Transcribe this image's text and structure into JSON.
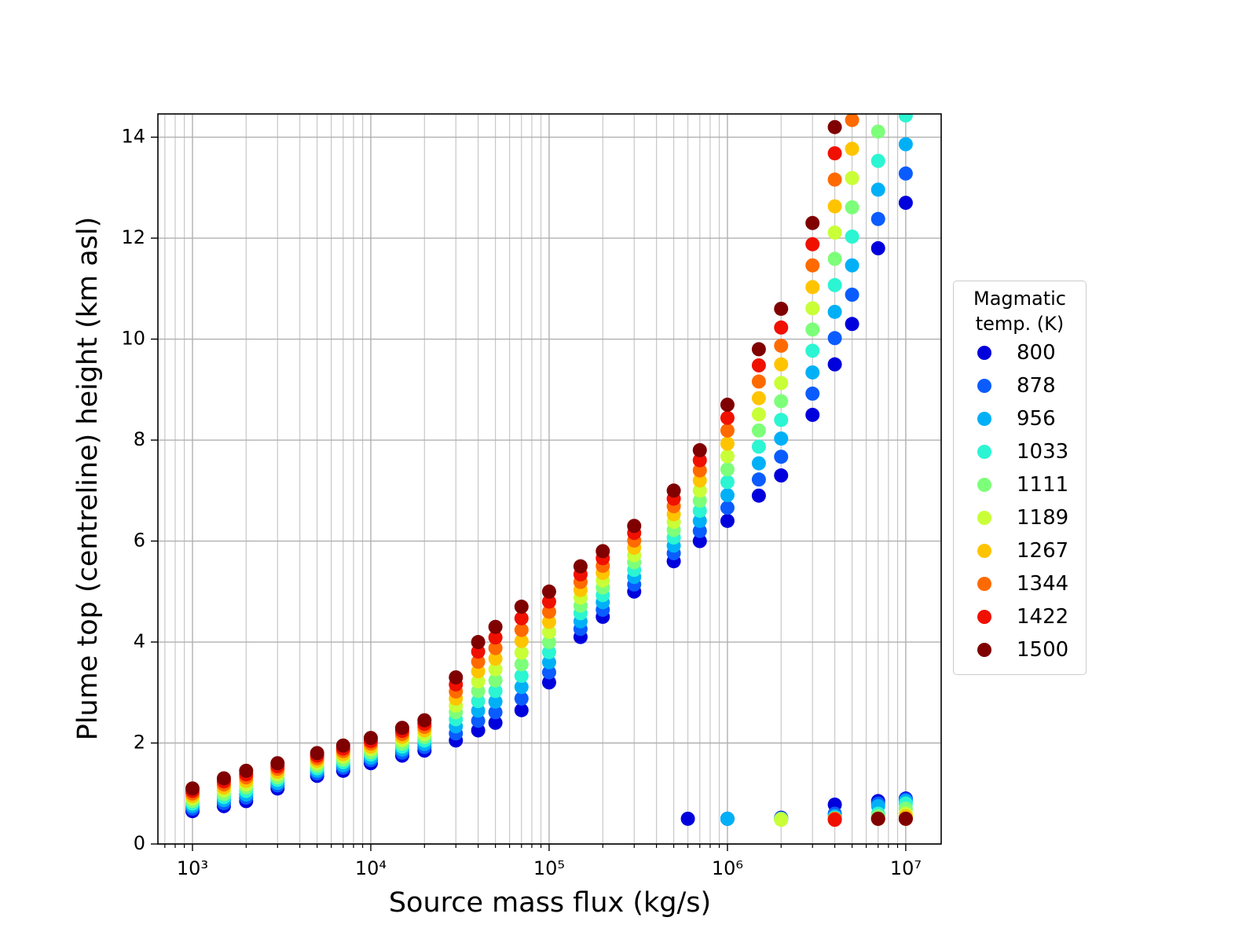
{
  "chart_data": {
    "type": "scatter",
    "xlabel": "Source mass flux (kg/s)",
    "ylabel": "Plume top (centreline) height (km asl)",
    "xscale": "log",
    "xlim": [
      640,
      15800000
    ],
    "ylim": [
      0,
      14.46
    ],
    "xticks": [
      {
        "value": 1000,
        "label": "10³"
      },
      {
        "value": 10000,
        "label": "10⁴"
      },
      {
        "value": 100000,
        "label": "10⁵"
      },
      {
        "value": 1000000,
        "label": "10⁶"
      },
      {
        "value": 10000000,
        "label": "10⁷"
      }
    ],
    "yticks": [
      0,
      2,
      4,
      6,
      8,
      10,
      12,
      14
    ],
    "grid": true,
    "legend_title": "Magmatic\ntemp. (K)",
    "legend_position": "right",
    "x": [
      1000,
      1500,
      2000,
      3000,
      5000,
      7000,
      10000,
      15000,
      20000,
      30000,
      40000,
      50000,
      70000,
      100000,
      150000,
      200000,
      300000,
      500000,
      700000,
      1000000,
      1500000,
      2000000,
      3000000,
      4000000,
      5000000,
      7000000,
      10000000,
      600000,
      1000000,
      2000000,
      4000000,
      7000000,
      10000000
    ],
    "series": [
      {
        "name": "800",
        "color": "#0000dd",
        "values": [
          0.65,
          0.75,
          0.85,
          1.1,
          1.35,
          1.45,
          1.6,
          1.75,
          1.85,
          2.05,
          2.25,
          2.4,
          2.65,
          3.2,
          4.1,
          4.5,
          5.0,
          5.6,
          6.0,
          6.4,
          6.9,
          7.3,
          8.5,
          9.5,
          10.3,
          11.8,
          12.7,
          0.5,
          0.5,
          0.52,
          0.78,
          0.85,
          0.9
        ]
      },
      {
        "name": "878",
        "color": "#0a5cff",
        "values": [
          0.7,
          0.81,
          0.92,
          1.16,
          1.4,
          1.51,
          1.66,
          1.81,
          1.92,
          2.19,
          2.44,
          2.61,
          2.88,
          3.4,
          4.26,
          4.64,
          5.14,
          5.76,
          6.2,
          6.66,
          7.22,
          7.67,
          8.92,
          10.02,
          10.88,
          12.38,
          13.28,
          null,
          0.5,
          0.5,
          0.6,
          0.8,
          0.88
        ]
      },
      {
        "name": "956",
        "color": "#00b0f7",
        "values": [
          0.75,
          0.87,
          0.98,
          1.21,
          1.45,
          1.56,
          1.71,
          1.87,
          1.98,
          2.33,
          2.64,
          2.82,
          3.11,
          3.6,
          4.41,
          4.79,
          5.29,
          5.91,
          6.4,
          6.91,
          7.54,
          8.03,
          9.34,
          10.54,
          11.46,
          12.96,
          13.86,
          null,
          0.5,
          0.5,
          0.55,
          0.75,
          0.85
        ]
      },
      {
        "name": "1033",
        "color": "#2bf5d2",
        "values": [
          0.8,
          0.93,
          1.05,
          1.27,
          1.5,
          1.62,
          1.77,
          1.93,
          2.05,
          2.47,
          2.83,
          3.03,
          3.33,
          3.8,
          4.57,
          4.93,
          5.43,
          6.07,
          6.6,
          7.17,
          7.87,
          8.4,
          9.77,
          11.07,
          12.03,
          13.53,
          14.43,
          null,
          null,
          0.5,
          0.52,
          0.6,
          0.8
        ]
      },
      {
        "name": "1111",
        "color": "#7dff7a",
        "values": [
          0.85,
          0.99,
          1.12,
          1.32,
          1.55,
          1.67,
          1.82,
          1.99,
          2.12,
          2.61,
          3.03,
          3.24,
          3.56,
          4.0,
          4.72,
          5.08,
          5.58,
          6.22,
          6.8,
          7.42,
          8.19,
          8.77,
          10.19,
          11.59,
          12.61,
          14.11,
          null,
          null,
          null,
          0.5,
          0.5,
          0.55,
          0.7
        ]
      },
      {
        "name": "1189",
        "color": "#c8ff37",
        "values": [
          0.9,
          1.06,
          1.18,
          1.38,
          1.6,
          1.73,
          1.88,
          2.06,
          2.18,
          2.74,
          3.22,
          3.46,
          3.79,
          4.2,
          4.88,
          5.22,
          5.72,
          6.38,
          7.0,
          7.68,
          8.51,
          9.13,
          10.61,
          12.11,
          13.19,
          null,
          null,
          null,
          null,
          0.48,
          0.5,
          0.5,
          0.6
        ]
      },
      {
        "name": "1267",
        "color": "#ffc400",
        "values": [
          0.95,
          1.12,
          1.25,
          1.43,
          1.65,
          1.78,
          1.93,
          2.12,
          2.25,
          2.88,
          3.42,
          3.67,
          4.02,
          4.4,
          5.03,
          5.37,
          5.87,
          6.53,
          7.2,
          7.93,
          8.83,
          9.5,
          11.03,
          12.63,
          13.77,
          null,
          null,
          null,
          null,
          null,
          0.5,
          0.5,
          0.55
        ]
      },
      {
        "name": "1344",
        "color": "#ff6a00",
        "values": [
          1.0,
          1.18,
          1.32,
          1.49,
          1.7,
          1.84,
          1.99,
          2.18,
          2.32,
          3.02,
          3.61,
          3.88,
          4.24,
          4.6,
          5.19,
          5.51,
          6.01,
          6.69,
          7.4,
          8.19,
          9.16,
          9.87,
          11.46,
          13.16,
          14.34,
          null,
          null,
          null,
          null,
          null,
          0.5,
          0.5,
          0.5
        ]
      },
      {
        "name": "1422",
        "color": "#f01000",
        "values": [
          1.05,
          1.24,
          1.38,
          1.54,
          1.75,
          1.89,
          2.04,
          2.24,
          2.38,
          3.16,
          3.81,
          4.09,
          4.47,
          4.8,
          5.34,
          5.66,
          6.16,
          6.84,
          7.6,
          8.44,
          9.48,
          10.23,
          11.88,
          13.68,
          null,
          null,
          null,
          null,
          null,
          null,
          0.48,
          0.5,
          0.5
        ]
      },
      {
        "name": "1500",
        "color": "#800000",
        "values": [
          1.1,
          1.3,
          1.45,
          1.6,
          1.8,
          1.95,
          2.1,
          2.3,
          2.45,
          3.3,
          4.0,
          4.3,
          4.7,
          5.0,
          5.5,
          5.8,
          6.3,
          7.0,
          7.8,
          8.7,
          9.8,
          10.6,
          12.3,
          14.2,
          null,
          null,
          null,
          null,
          null,
          null,
          null,
          0.5,
          0.5
        ]
      }
    ]
  }
}
